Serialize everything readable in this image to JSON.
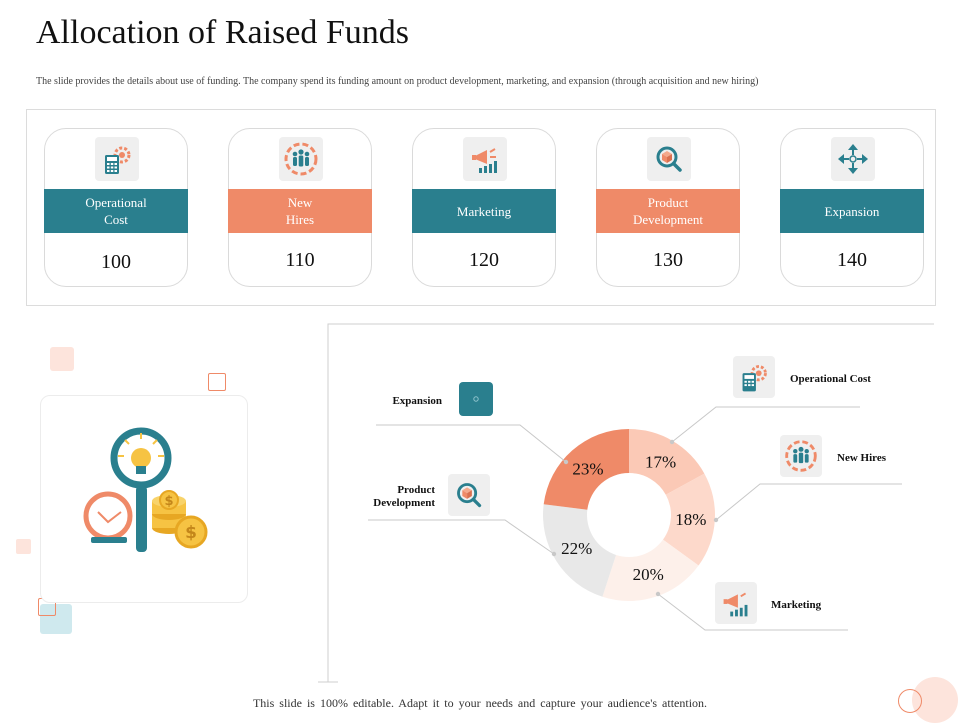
{
  "title": "Allocation of Raised Funds",
  "subtitle": "The slide provides the details about use of funding. The company spend its funding amount on product development, marketing, and expansion (through acquisition and new hiring)",
  "cards": [
    {
      "label_lines": [
        "Operational",
        "Cost"
      ],
      "value": "100",
      "color": "teal",
      "icon": "calculator-gear-icon"
    },
    {
      "label_lines": [
        "New",
        "Hires"
      ],
      "value": "110",
      "color": "orange",
      "icon": "team-circle-icon"
    },
    {
      "label_lines": [
        "Marketing"
      ],
      "value": "120",
      "color": "teal",
      "icon": "megaphone-chart-icon"
    },
    {
      "label_lines": [
        "Product",
        "Development"
      ],
      "value": "130",
      "color": "orange",
      "icon": "box-magnifier-icon"
    },
    {
      "label_lines": [
        "Expansion"
      ],
      "value": "140",
      "color": "teal",
      "icon": "expand-arrows-icon"
    }
  ],
  "colors": {
    "teal": "#2a7f8e",
    "orange": "#ef8a68"
  },
  "chart_data": {
    "type": "pie",
    "title": "",
    "slices": [
      {
        "label": "Operational Cost",
        "value": 17,
        "text": "17%",
        "color": "#fbc9b6"
      },
      {
        "label": "New Hires",
        "value": 18,
        "text": "18%",
        "color": "#fdd9cb"
      },
      {
        "label": "Marketing",
        "value": 20,
        "text": "20%",
        "color": "#fdf0ea"
      },
      {
        "label": "Product Development",
        "value": 22,
        "text": "22%",
        "color": "#e8e8e8"
      },
      {
        "label": "Expansion",
        "value": 23,
        "text": "23%",
        "color": "#ef8a68"
      }
    ],
    "legend_labels": {
      "operational_cost": "Operational Cost",
      "new_hires": "New Hires",
      "marketing": "Marketing",
      "product_development_1": "Product",
      "product_development_2": "Development",
      "expansion": "Expansion"
    }
  },
  "footer": "This slide is 100% editable.  Adapt it to your needs and capture your audience's attention."
}
